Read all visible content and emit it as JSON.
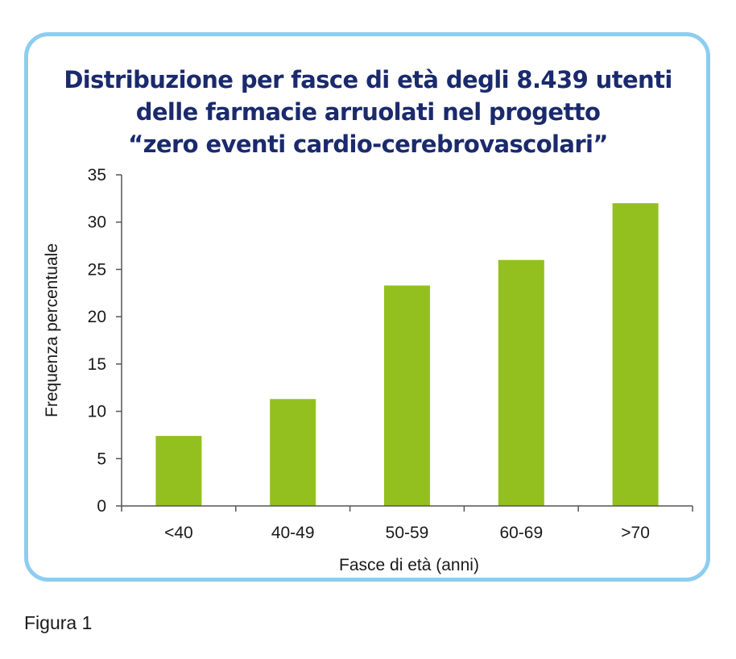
{
  "title_lines": [
    "Distribuzione per fasce di età degli 8.439 utenti",
    "delle farmacie arruolati nel progetto",
    "“zero eventi cardio-cerebrovascolari”"
  ],
  "caption": "Figura 1",
  "colors": {
    "bar": "#93c01f",
    "frame_border": "#8dcdf0",
    "title": "#1a2a6c",
    "axis": "#555555"
  },
  "chart_data": {
    "type": "bar",
    "title": "Distribuzione per fasce di età degli 8.439 utenti delle farmacie arruolati nel progetto “zero eventi cardio-cerebrovascolari”",
    "xlabel": "Fasce di età (anni)",
    "ylabel": "Frequenza percentuale",
    "categories": [
      "<40",
      "40-49",
      "50-59",
      "60-69",
      ">70"
    ],
    "values": [
      7.4,
      11.3,
      23.3,
      26.0,
      32.0
    ],
    "ylim": [
      0,
      35
    ],
    "yticks": [
      0,
      5,
      10,
      15,
      20,
      25,
      30,
      35
    ],
    "grid": false,
    "legend": "none"
  }
}
